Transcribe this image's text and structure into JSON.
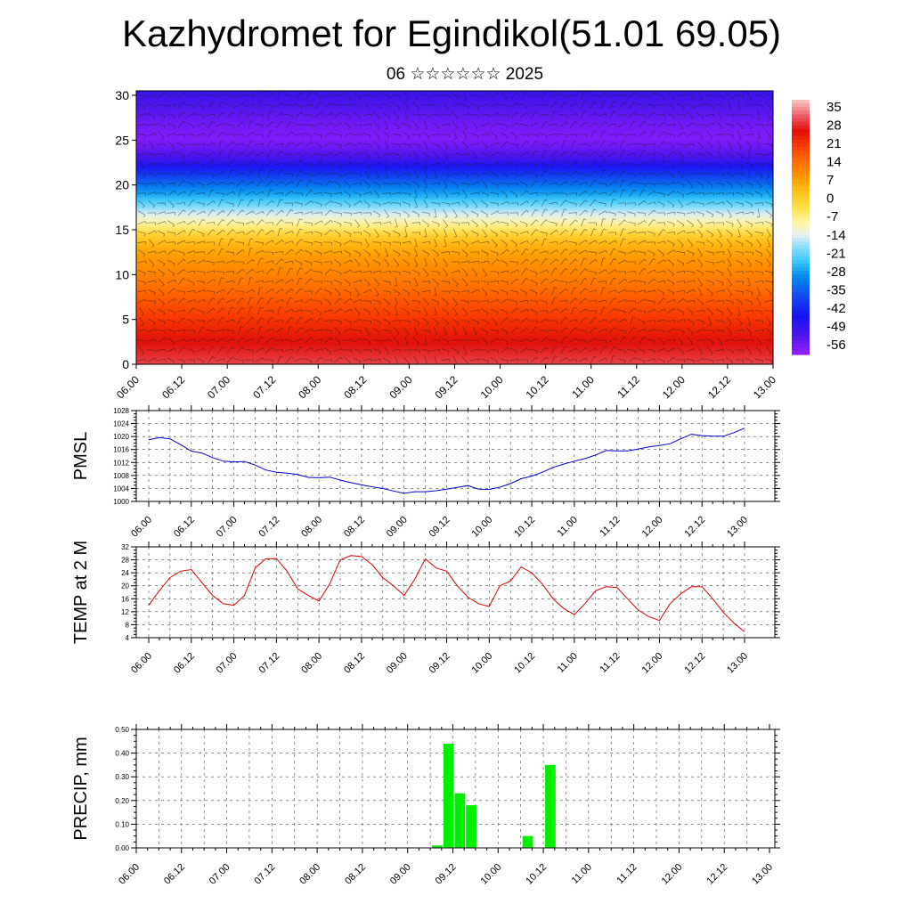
{
  "header": {
    "title": "Kazhydromet for Egindikol(51.01 69.05)",
    "subtitle": "06 ☆☆☆☆☆☆ 2025"
  },
  "chart_data": [
    {
      "type": "heatmap",
      "name": "vertical cross-section",
      "ylabel": "",
      "y_ticks": [
        "0",
        "5",
        "10",
        "15",
        "20",
        "25",
        "30"
      ],
      "ylim": [
        0,
        30.5
      ],
      "x_ticks": [
        "06.00",
        "06.12",
        "07.00",
        "07.12",
        "08.00",
        "08.12",
        "09.00",
        "09.12",
        "10.00",
        "10.12",
        "11.00",
        "11.12",
        "12.00",
        "12.12",
        "13.00"
      ],
      "colorbar_labels": [
        "35",
        "28",
        "21",
        "14",
        "7",
        "0",
        "-7",
        "-14",
        "-21",
        "-28",
        "-35",
        "-42",
        "-49",
        "-56"
      ],
      "colorbar_range": [
        -60,
        38
      ],
      "profile_height": [
        0,
        3,
        6,
        9,
        12,
        14,
        15.5,
        17,
        18.5,
        20,
        21.5,
        23,
        25,
        27,
        30.5
      ],
      "profile_temp": [
        30,
        25,
        19,
        13,
        8,
        2,
        -8,
        -16,
        -25,
        -33,
        -42,
        -52,
        -58,
        -56,
        -50
      ],
      "wind_barbs": true
    },
    {
      "type": "line",
      "name": "PMSL",
      "ylabel": "PMSL",
      "ylim": [
        1000,
        1028
      ],
      "y_ticks": [
        1000,
        1004,
        1008,
        1012,
        1016,
        1020,
        1024,
        1028
      ],
      "x_ticks": [
        "06.00",
        "06.12",
        "07.00",
        "07.12",
        "08.00",
        "08.12",
        "09.00",
        "09.12",
        "10.00",
        "10.12",
        "11.00",
        "11.12",
        "12.00",
        "12.12",
        "13.00"
      ],
      "color": "#0000cc",
      "x_hours": [
        0,
        3,
        6,
        9,
        12,
        15,
        18,
        21,
        24,
        27,
        30,
        33,
        36,
        39,
        42,
        45,
        48,
        51,
        54,
        57,
        60,
        63,
        66,
        69,
        72,
        75,
        78,
        81,
        84,
        87,
        90,
        93,
        96,
        99,
        102,
        105,
        108,
        111,
        114,
        117,
        120,
        123,
        126,
        129,
        132,
        135,
        138,
        141,
        144,
        147,
        150,
        153,
        156,
        159,
        162,
        165,
        168
      ],
      "values": [
        1019,
        1019.7,
        1019.3,
        1017.5,
        1015.5,
        1014.9,
        1013.5,
        1012.4,
        1012.2,
        1012.3,
        1011.2,
        1009.7,
        1009.0,
        1008.7,
        1008.3,
        1007.4,
        1007.3,
        1007.5,
        1006.6,
        1005.8,
        1005.1,
        1004.5,
        1004.0,
        1003.2,
        1002.5,
        1003.0,
        1003.0,
        1003.3,
        1003.8,
        1004.3,
        1004.9,
        1003.8,
        1003.7,
        1004.4,
        1005.5,
        1007.0,
        1007.8,
        1009.0,
        1010.5,
        1011.5,
        1012.4,
        1013.2,
        1014.3,
        1015.7,
        1015.6,
        1015.6,
        1016.1,
        1016.8,
        1017.2,
        1017.8,
        1019.3,
        1020.7,
        1020.3,
        1020.1,
        1020.1,
        1021.2,
        1022.6
      ]
    },
    {
      "type": "line",
      "name": "TEMP at 2 M",
      "ylabel": "TEMP at 2 M",
      "ylim": [
        4,
        32
      ],
      "y_ticks": [
        4,
        8,
        12,
        16,
        20,
        24,
        28,
        32
      ],
      "x_ticks": [
        "06.00",
        "06.12",
        "07.00",
        "07.12",
        "08.00",
        "08.12",
        "09.00",
        "09.12",
        "10.00",
        "10.12",
        "11.00",
        "11.12",
        "12.00",
        "12.12",
        "13.00"
      ],
      "color": "#dd0000",
      "x_hours": [
        0,
        3,
        6,
        9,
        12,
        15,
        18,
        21,
        24,
        27,
        30,
        33,
        36,
        39,
        42,
        45,
        48,
        51,
        54,
        57,
        60,
        63,
        66,
        69,
        72,
        75,
        78,
        81,
        84,
        87,
        90,
        93,
        96,
        99,
        102,
        105,
        108,
        111,
        114,
        117,
        120,
        123,
        126,
        129,
        132,
        135,
        138,
        141,
        144,
        147,
        150,
        153,
        156,
        159,
        162,
        165,
        168
      ],
      "values": [
        14,
        18.5,
        22.5,
        24.5,
        25,
        21,
        17,
        14.5,
        14,
        17,
        25.5,
        28.3,
        28.4,
        24.5,
        19,
        17,
        15.3,
        20.5,
        28,
        29.3,
        29,
        26.5,
        22.5,
        20,
        17,
        22,
        28.3,
        25.5,
        24.5,
        20,
        16.5,
        14.5,
        13.6,
        20,
        21.5,
        25.8,
        24,
        20.5,
        16,
        13,
        11.1,
        14.5,
        18.5,
        19.7,
        19.5,
        16,
        12.5,
        10.5,
        9.3,
        14.5,
        17.5,
        19.7,
        19.7,
        16,
        11.8,
        8.5,
        5.8
      ]
    },
    {
      "type": "bar",
      "name": "PRECIP, mm",
      "ylabel": "PRECIP, mm",
      "ylim": [
        0,
        0.5
      ],
      "y_ticks": [
        "0.00",
        "0.10",
        "0.20",
        "0.30",
        "0.40",
        "0.50"
      ],
      "x_ticks": [
        "06.00",
        "06.12",
        "07.00",
        "07.12",
        "08.00",
        "08.12",
        "09.00",
        "09.12",
        "10.00",
        "10.12",
        "11.00",
        "11.12",
        "12.00",
        "12.12",
        "13.00"
      ],
      "color": "#00ee00",
      "bars": [
        {
          "x_hours": 78,
          "value": 0.01
        },
        {
          "x_hours": 81,
          "value": 0.44
        },
        {
          "x_hours": 84,
          "value": 0.23
        },
        {
          "x_hours": 87,
          "value": 0.18
        },
        {
          "x_hours": 102,
          "value": 0.05
        },
        {
          "x_hours": 108,
          "value": 0.35
        }
      ]
    }
  ]
}
